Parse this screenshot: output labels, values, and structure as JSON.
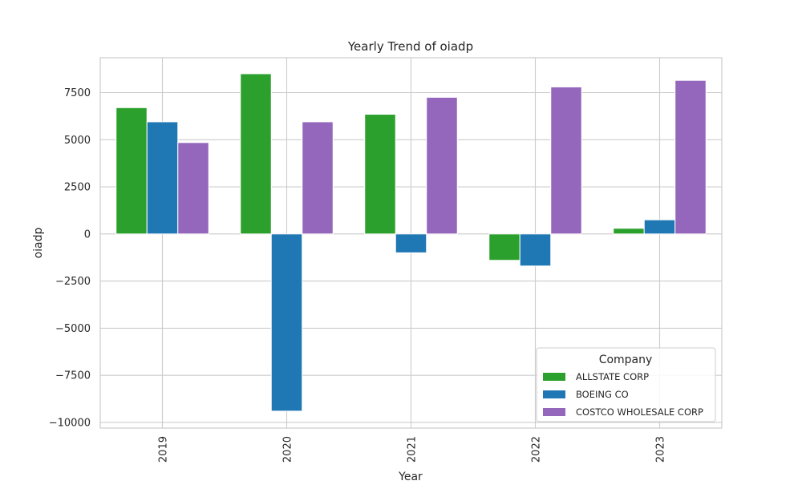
{
  "chart_data": {
    "type": "bar",
    "title": "Yearly Trend of oiadp",
    "xlabel": "Year",
    "ylabel": "oiadp",
    "categories": [
      "2019",
      "2020",
      "2021",
      "2022",
      "2023"
    ],
    "series": [
      {
        "name": "ALLSTATE CORP",
        "color": "#2ca02c",
        "values": [
          6700,
          8500,
          6350,
          -1400,
          300
        ]
      },
      {
        "name": "BOEING CO",
        "color": "#1f77b4",
        "values": [
          5950,
          -9400,
          -1000,
          -1700,
          750
        ]
      },
      {
        "name": "COSTCO WHOLESALE CORP",
        "color": "#9467bd",
        "values": [
          4850,
          5950,
          7250,
          7800,
          8150
        ]
      }
    ],
    "ylim": [
      -10300,
      9350
    ],
    "yticks": [
      -10000,
      -7500,
      -5000,
      -2500,
      0,
      2500,
      5000,
      7500
    ],
    "ytick_labels": [
      "−10000",
      "−7500",
      "−5000",
      "−2500",
      "0",
      "2500",
      "5000",
      "7500"
    ],
    "grid": true,
    "legend": {
      "title": "Company",
      "placement": "lower-right"
    }
  }
}
